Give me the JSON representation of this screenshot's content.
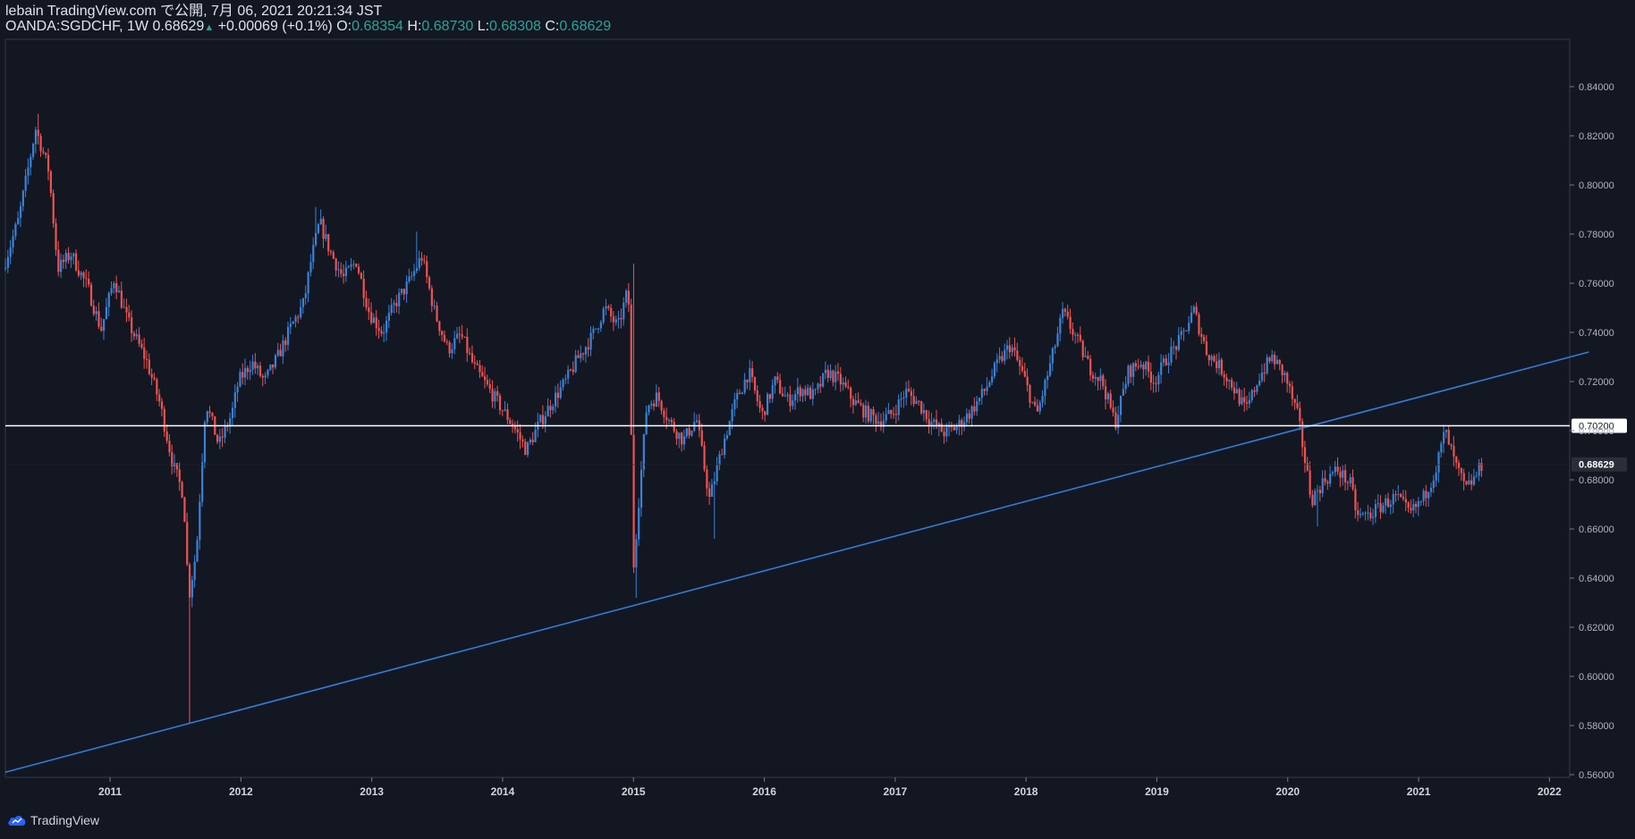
{
  "header": {
    "line1": "lebain TradingView.com で公開, 7月 06, 2021 20:21:34 JST",
    "symbol": "OANDA:SGDCHF, 1W",
    "last": "0.68629",
    "change": "+0.00069 (+0.1%)",
    "o_label": "O:",
    "o": "0.68354",
    "h_label": "H:",
    "h": "0.68730",
    "l_label": "L:",
    "l": "0.68308",
    "c_label": "C:",
    "c": "0.68629"
  },
  "footer": {
    "brand": "TradingView"
  },
  "colors": {
    "bg": "#131722",
    "up": "#26a69a",
    "candle_up": "#3a82d6",
    "candle_down": "#ef5350",
    "trend": "#2f7ed8",
    "axis": "#787b86"
  },
  "chart_data": {
    "type": "candlestick",
    "title": "OANDA:SGDCHF, 1W",
    "ylim": [
      0.555,
      0.85
    ],
    "xlim": [
      2010.2,
      2022.2
    ],
    "y_ticks": [
      "0.56000",
      "0.58000",
      "0.60000",
      "0.62000",
      "0.64000",
      "0.66000",
      "0.68000",
      "0.70000",
      "0.72000",
      "0.74000",
      "0.76000",
      "0.78000",
      "0.80000",
      "0.82000",
      "0.84000"
    ],
    "x_ticks": [
      "2011",
      "2012",
      "2013",
      "2014",
      "2015",
      "2016",
      "2017",
      "2018",
      "2019",
      "2020",
      "2021",
      "2022"
    ],
    "price_anchors": [
      [
        2010.2,
        0.766
      ],
      [
        2010.32,
        0.786
      ],
      [
        2010.45,
        0.823
      ],
      [
        2010.55,
        0.806
      ],
      [
        2010.62,
        0.766
      ],
      [
        2010.72,
        0.772
      ],
      [
        2010.85,
        0.758
      ],
      [
        2010.95,
        0.741
      ],
      [
        2011.05,
        0.762
      ],
      [
        2011.15,
        0.745
      ],
      [
        2011.3,
        0.728
      ],
      [
        2011.4,
        0.711
      ],
      [
        2011.5,
        0.686
      ],
      [
        2011.58,
        0.674
      ],
      [
        2011.62,
        0.632
      ],
      [
        2011.68,
        0.652
      ],
      [
        2011.75,
        0.712
      ],
      [
        2011.85,
        0.694
      ],
      [
        2011.95,
        0.707
      ],
      [
        2012.0,
        0.72
      ],
      [
        2012.1,
        0.728
      ],
      [
        2012.2,
        0.72
      ],
      [
        2012.3,
        0.73
      ],
      [
        2012.4,
        0.742
      ],
      [
        2012.5,
        0.752
      ],
      [
        2012.55,
        0.768
      ],
      [
        2012.62,
        0.785
      ],
      [
        2012.7,
        0.773
      ],
      [
        2012.8,
        0.762
      ],
      [
        2012.9,
        0.769
      ],
      [
        2013.0,
        0.748
      ],
      [
        2013.1,
        0.74
      ],
      [
        2013.2,
        0.752
      ],
      [
        2013.3,
        0.76
      ],
      [
        2013.4,
        0.771
      ],
      [
        2013.5,
        0.748
      ],
      [
        2013.6,
        0.733
      ],
      [
        2013.7,
        0.739
      ],
      [
        2013.8,
        0.726
      ],
      [
        2013.9,
        0.718
      ],
      [
        2014.0,
        0.71
      ],
      [
        2014.1,
        0.702
      ],
      [
        2014.2,
        0.692
      ],
      [
        2014.3,
        0.703
      ],
      [
        2014.4,
        0.712
      ],
      [
        2014.5,
        0.72
      ],
      [
        2014.6,
        0.73
      ],
      [
        2014.7,
        0.738
      ],
      [
        2014.8,
        0.75
      ],
      [
        2014.9,
        0.742
      ],
      [
        2014.98,
        0.758
      ],
      [
        2015.02,
        0.645
      ],
      [
        2015.06,
        0.672
      ],
      [
        2015.12,
        0.71
      ],
      [
        2015.2,
        0.714
      ],
      [
        2015.3,
        0.703
      ],
      [
        2015.4,
        0.696
      ],
      [
        2015.5,
        0.705
      ],
      [
        2015.6,
        0.672
      ],
      [
        2015.7,
        0.694
      ],
      [
        2015.8,
        0.712
      ],
      [
        2015.9,
        0.724
      ],
      [
        2016.0,
        0.706
      ],
      [
        2016.1,
        0.72
      ],
      [
        2016.2,
        0.712
      ],
      [
        2016.3,
        0.717
      ],
      [
        2016.4,
        0.714
      ],
      [
        2016.5,
        0.724
      ],
      [
        2016.6,
        0.72
      ],
      [
        2016.7,
        0.712
      ],
      [
        2016.8,
        0.707
      ],
      [
        2016.9,
        0.704
      ],
      [
        2017.0,
        0.707
      ],
      [
        2017.1,
        0.716
      ],
      [
        2017.2,
        0.711
      ],
      [
        2017.3,
        0.703
      ],
      [
        2017.4,
        0.699
      ],
      [
        2017.5,
        0.702
      ],
      [
        2017.6,
        0.708
      ],
      [
        2017.7,
        0.716
      ],
      [
        2017.8,
        0.727
      ],
      [
        2017.9,
        0.735
      ],
      [
        2018.0,
        0.722
      ],
      [
        2018.1,
        0.706
      ],
      [
        2018.2,
        0.726
      ],
      [
        2018.3,
        0.748
      ],
      [
        2018.4,
        0.738
      ],
      [
        2018.5,
        0.726
      ],
      [
        2018.6,
        0.72
      ],
      [
        2018.7,
        0.703
      ],
      [
        2018.8,
        0.724
      ],
      [
        2018.9,
        0.728
      ],
      [
        2019.0,
        0.72
      ],
      [
        2019.1,
        0.73
      ],
      [
        2019.2,
        0.737
      ],
      [
        2019.3,
        0.749
      ],
      [
        2019.4,
        0.732
      ],
      [
        2019.5,
        0.726
      ],
      [
        2019.6,
        0.718
      ],
      [
        2019.7,
        0.708
      ],
      [
        2019.8,
        0.722
      ],
      [
        2019.9,
        0.73
      ],
      [
        2020.0,
        0.722
      ],
      [
        2020.1,
        0.705
      ],
      [
        2020.15,
        0.688
      ],
      [
        2020.2,
        0.672
      ],
      [
        2020.3,
        0.68
      ],
      [
        2020.4,
        0.684
      ],
      [
        2020.5,
        0.678
      ],
      [
        2020.55,
        0.665
      ],
      [
        2020.65,
        0.666
      ],
      [
        2020.75,
        0.67
      ],
      [
        2020.85,
        0.673
      ],
      [
        2020.95,
        0.666
      ],
      [
        2021.05,
        0.672
      ],
      [
        2021.15,
        0.684
      ],
      [
        2021.22,
        0.7
      ],
      [
        2021.3,
        0.686
      ],
      [
        2021.38,
        0.676
      ],
      [
        2021.45,
        0.681
      ],
      [
        2021.5,
        0.686
      ]
    ],
    "candle_count": 586,
    "horizontal_line": {
      "value": 0.702,
      "label": "0.70200"
    },
    "last_price_label": "0.68629",
    "trendline": {
      "from": [
        2010.2,
        0.561
      ],
      "to": [
        2022.3,
        0.732
      ]
    },
    "wick_lows": [
      [
        2011.6,
        0.581
      ],
      [
        2015.02,
        0.632
      ],
      [
        2015.62,
        0.656
      ],
      [
        2020.22,
        0.661
      ]
    ],
    "wick_highs": [
      [
        2010.45,
        0.829
      ],
      [
        2015.0,
        0.768
      ],
      [
        2012.58,
        0.791
      ],
      [
        2013.35,
        0.781
      ]
    ]
  }
}
